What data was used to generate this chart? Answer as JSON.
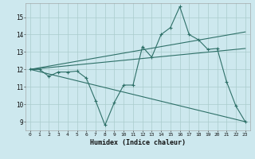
{
  "xlabel": "Humidex (Indice chaleur)",
  "background_color": "#cde8ee",
  "grid_color": "#aacccc",
  "line_color": "#2e7068",
  "xlim": [
    -0.5,
    23.5
  ],
  "ylim": [
    8.5,
    15.8
  ],
  "yticks": [
    9,
    10,
    11,
    12,
    13,
    14,
    15
  ],
  "xticks": [
    0,
    1,
    2,
    3,
    4,
    5,
    6,
    7,
    8,
    9,
    10,
    11,
    12,
    13,
    14,
    15,
    16,
    17,
    18,
    19,
    20,
    21,
    22,
    23
  ],
  "series1_x": [
    0,
    1,
    2,
    3,
    4,
    5,
    6,
    7,
    8,
    9,
    10,
    11,
    12,
    13,
    14,
    15,
    16,
    17,
    18,
    19,
    20,
    21,
    22,
    23
  ],
  "series1_y": [
    12.0,
    12.0,
    11.6,
    11.85,
    11.85,
    11.9,
    11.5,
    10.2,
    8.8,
    10.1,
    11.1,
    11.1,
    13.3,
    12.7,
    14.0,
    14.4,
    15.6,
    14.0,
    13.7,
    13.15,
    13.2,
    11.3,
    9.9,
    9.0
  ],
  "series2_x": [
    0,
    23
  ],
  "series2_y": [
    12.0,
    9.0
  ],
  "series3_x": [
    0,
    23
  ],
  "series3_y": [
    12.0,
    13.2
  ],
  "series4_x": [
    0,
    23
  ],
  "series4_y": [
    12.0,
    14.15
  ]
}
